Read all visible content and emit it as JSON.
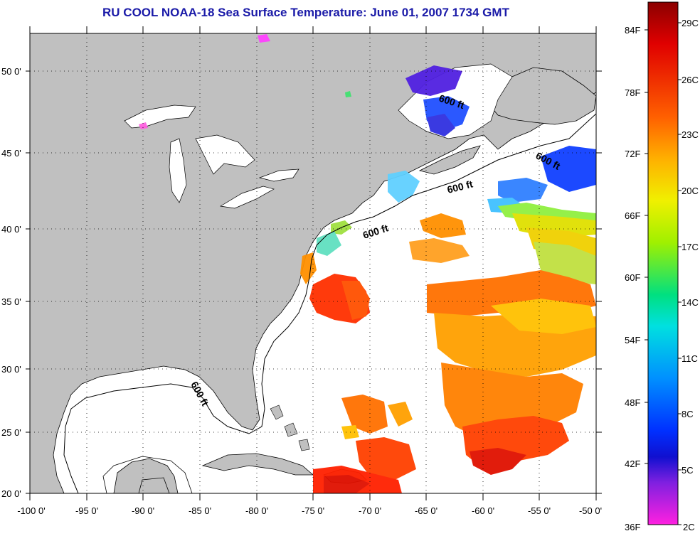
{
  "title": "RU COOL  NOAA-18  Sea Surface Temperature:  June 01, 2007 1734 GMT",
  "map": {
    "lon_range": [
      -100,
      -50
    ],
    "lat_range": [
      20,
      52.5
    ],
    "lon_ticks": [
      "-100 0'",
      "-95 0'",
      "-90 0'",
      "-85 0'",
      "-80 0'",
      "-75 0'",
      "-70 0'",
      "-65 0'",
      "-60 0'",
      "-55 0'",
      "-50 0'"
    ],
    "lat_ticks": [
      "20 0'",
      "25 0'",
      "30 0'",
      "35 0'",
      "40 0'",
      "45 0'",
      "50 0'"
    ],
    "grid": "dotted",
    "land_color": "#c0c0c0",
    "contour_labels": [
      "600 ft",
      "600 ft",
      "600 ft",
      "600 ft",
      "600 ft"
    ]
  },
  "colorbar": {
    "fahrenheit_labels": [
      "84F",
      "78F",
      "72F",
      "66F",
      "60F",
      "54F",
      "48F",
      "42F",
      "36F"
    ],
    "celsius_labels": [
      "29C",
      "26C",
      "23C",
      "20C",
      "17C",
      "14C",
      "11C",
      "8C",
      "5C",
      "2C"
    ],
    "colors": [
      "#8b0000",
      "#e00000",
      "#ff6000",
      "#ffb000",
      "#f0f000",
      "#a0f000",
      "#00e080",
      "#00e0e0",
      "#0090ff",
      "#0030ff",
      "#1010d0",
      "#8020e0",
      "#ff20e0"
    ]
  }
}
